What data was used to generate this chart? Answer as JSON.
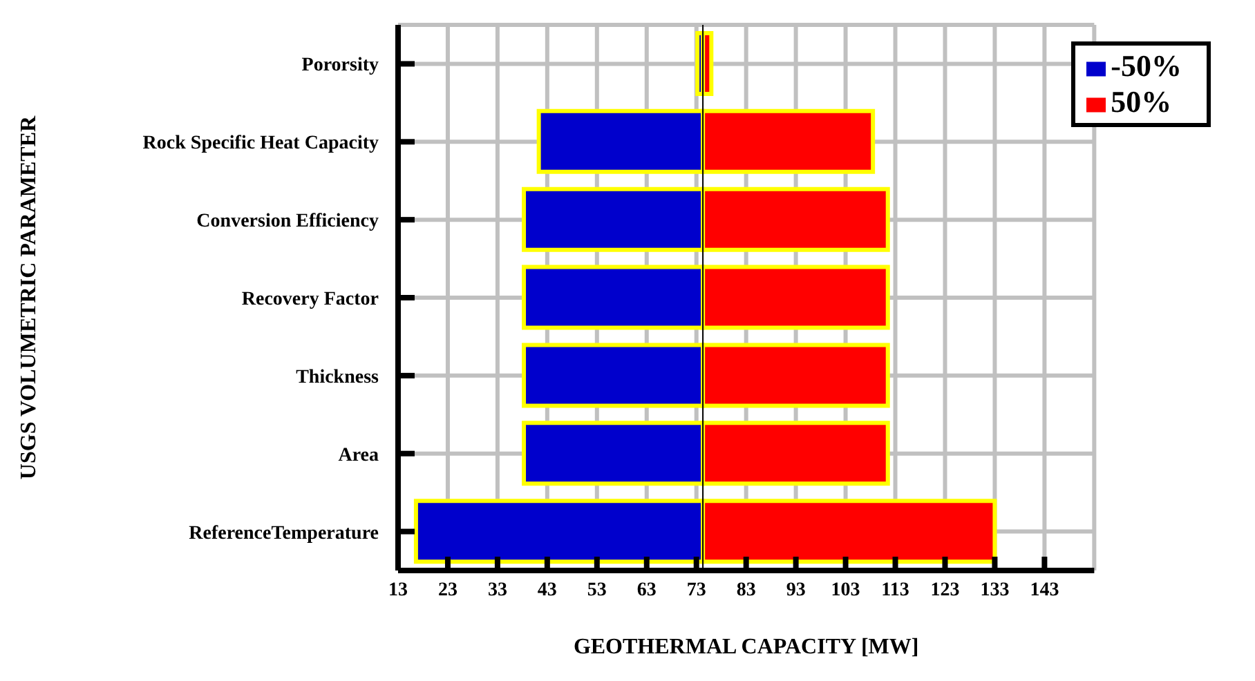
{
  "chart_data": {
    "type": "bar",
    "orientation": "horizontal",
    "xlabel": "GEOTHERMAL CAPACITY [MW]",
    "ylabel": "USGS VOLUMETRIC PARAMETER",
    "categories": [
      "Pororsity",
      "Rock Specific Heat Capacity",
      "Conversion Efficiency",
      "Recovery Factor",
      "Thickness",
      "Area",
      "ReferenceTemperature"
    ],
    "series": [
      {
        "name": "50%",
        "color": "#ff0000",
        "base": [
          74.3,
          74.3,
          74.3,
          74.3,
          74.3,
          74.3,
          74.3
        ],
        "values": [
          1.7,
          34.2,
          37.2,
          37.2,
          37.2,
          37.2,
          58.7
        ]
      },
      {
        "name": "-50%",
        "color": "#0000cc",
        "base": [
          73.2,
          41.3,
          38.3,
          38.3,
          38.3,
          38.3,
          16.6
        ],
        "values": [
          1.1,
          33,
          36,
          36,
          36,
          36,
          57.7
        ]
      }
    ],
    "xlim": [
      13,
      153
    ],
    "xticks": [
      13,
      23,
      33,
      43,
      53,
      63,
      73,
      83,
      93,
      103,
      113,
      123,
      133,
      143
    ],
    "ref_lines": [
      {
        "axis": "x",
        "value": 74.3,
        "color": "#000000"
      }
    ],
    "grid": true,
    "legend": "top right"
  }
}
